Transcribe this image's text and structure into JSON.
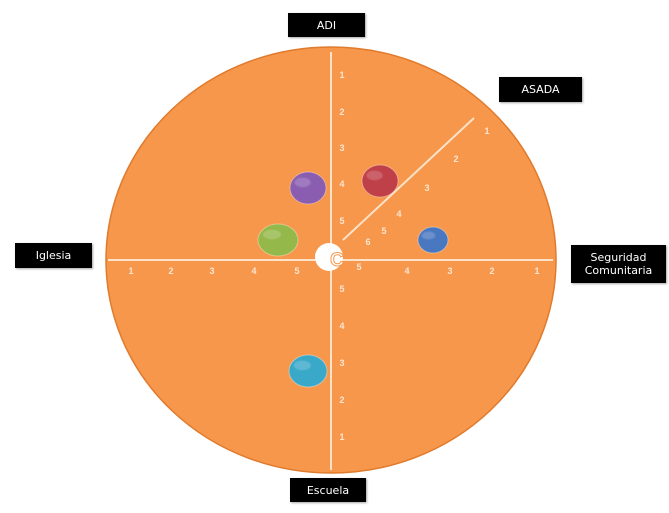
{
  "stakeholders": {
    "top": "ADI",
    "top_right": "ASADA",
    "left": "Iglesia",
    "right_line1": "Seguridad",
    "right_line2": "Comunitaria",
    "bottom": "Escuela"
  },
  "center_label": "C",
  "colors": {
    "disc": "#f6974b",
    "axis": "#fbe2c8",
    "center": "#ffffff",
    "center_text": "#f6974b"
  },
  "axes": {
    "up": [
      "1",
      "2",
      "3",
      "4",
      "5"
    ],
    "down": [
      "1",
      "2",
      "3",
      "4",
      "5"
    ],
    "left": [
      "1",
      "2",
      "3",
      "4",
      "5"
    ],
    "right": [
      "1",
      "2",
      "3",
      "4",
      "5"
    ],
    "diagonal": [
      "1",
      "2",
      "3",
      "4",
      "5",
      "6"
    ]
  },
  "actors": [
    {
      "name": "purple",
      "color": "#8a5db0",
      "axis": "ADI",
      "level": 4
    },
    {
      "name": "red",
      "color": "#c0404a",
      "axis": "ASADA",
      "level": 4
    },
    {
      "name": "green",
      "color": "#95b84a",
      "axis": "Iglesia",
      "level": 4
    },
    {
      "name": "blue",
      "color": "#4a78c0",
      "axis": "Seguridad Comunitaria",
      "level": 3
    },
    {
      "name": "cyan",
      "color": "#3aa8c9",
      "axis": "Escuela",
      "level": 3
    }
  ]
}
